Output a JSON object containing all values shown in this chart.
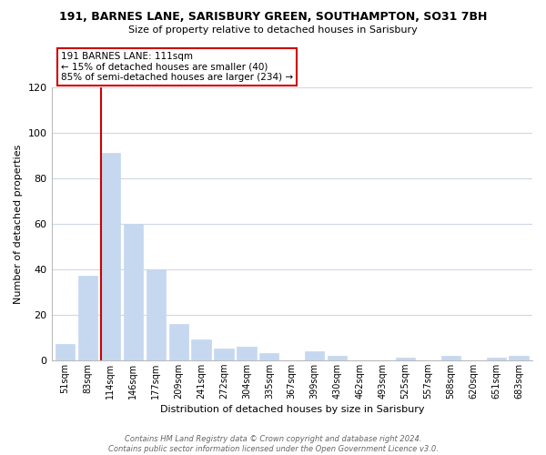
{
  "title": "191, BARNES LANE, SARISBURY GREEN, SOUTHAMPTON, SO31 7BH",
  "subtitle": "Size of property relative to detached houses in Sarisbury",
  "xlabel": "Distribution of detached houses by size in Sarisbury",
  "ylabel": "Number of detached properties",
  "bar_labels": [
    "51sqm",
    "83sqm",
    "114sqm",
    "146sqm",
    "177sqm",
    "209sqm",
    "241sqm",
    "272sqm",
    "304sqm",
    "335sqm",
    "367sqm",
    "399sqm",
    "430sqm",
    "462sqm",
    "493sqm",
    "525sqm",
    "557sqm",
    "588sqm",
    "620sqm",
    "651sqm",
    "683sqm"
  ],
  "bar_values": [
    7,
    37,
    91,
    60,
    40,
    16,
    9,
    5,
    6,
    3,
    0,
    4,
    2,
    0,
    0,
    1,
    0,
    2,
    0,
    1,
    2
  ],
  "bar_color": "#c5d8ef",
  "highlight_bar_index": 2,
  "highlight_line_color": "#cc0000",
  "ylim": [
    0,
    120
  ],
  "yticks": [
    0,
    20,
    40,
    60,
    80,
    100,
    120
  ],
  "annotation_line1": "191 BARNES LANE: 111sqm",
  "annotation_line2": "← 15% of detached houses are smaller (40)",
  "annotation_line3": "85% of semi-detached houses are larger (234) →",
  "annotation_box_color": "#ffffff",
  "annotation_box_edge_color": "#cc0000",
  "footer_line1": "Contains HM Land Registry data © Crown copyright and database right 2024.",
  "footer_line2": "Contains public sector information licensed under the Open Government Licence v3.0.",
  "background_color": "#ffffff",
  "grid_color": "#cdd8e5"
}
